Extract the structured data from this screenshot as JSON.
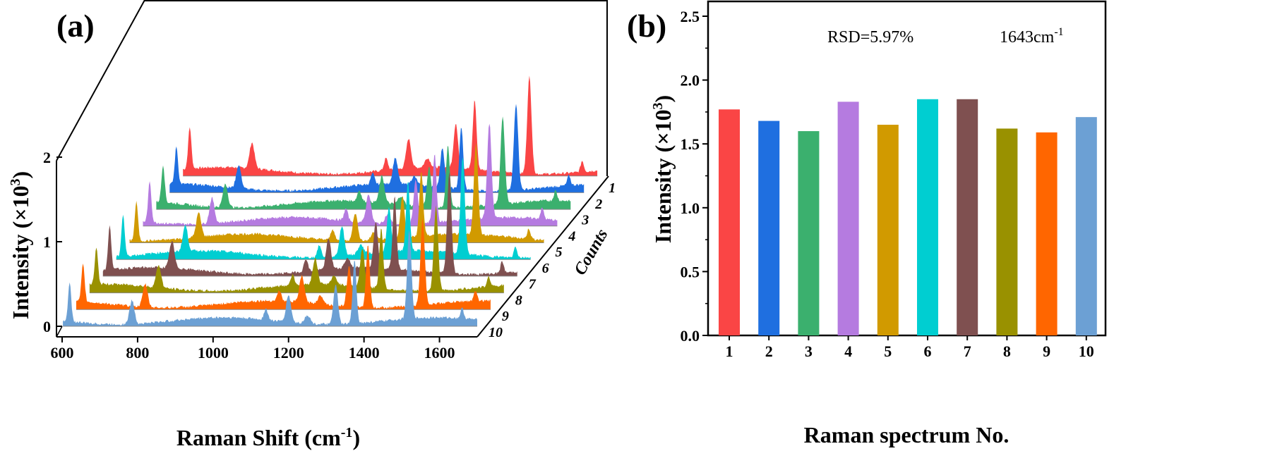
{
  "chart_data": [
    {
      "type": "area",
      "panel_label": "(a)",
      "title": "",
      "xlabel": "Raman Shift (cm",
      "xlabel_sup": "-1",
      "xlabel_close": ")",
      "ylabel": "Intensity (×10",
      "ylabel_sup": "3",
      "ylabel_close": ")",
      "zlabel": "Counts",
      "xlim": [
        600,
        1700
      ],
      "ylim": [
        0,
        2
      ],
      "xticks": [
        "600",
        "800",
        "1000",
        "1200",
        "1400",
        "1600"
      ],
      "xtick_values": [
        600,
        800,
        1000,
        1200,
        1400,
        1600
      ],
      "yticks": [
        "0",
        "1",
        "2"
      ],
      "ytick_values": [
        0,
        1,
        2
      ],
      "zticks": [
        "1",
        "2",
        "3",
        "4",
        "5",
        "6",
        "7",
        "8",
        "9",
        "10"
      ],
      "peaks_cm1": [
        {
          "x": 620,
          "h": 0.45,
          "w": 6
        },
        {
          "x": 785,
          "h": 0.28,
          "w": 9
        },
        {
          "x": 1140,
          "h": 0.13,
          "w": 7
        },
        {
          "x": 1200,
          "h": 0.32,
          "w": 9
        },
        {
          "x": 1250,
          "h": 0.1,
          "w": 10
        },
        {
          "x": 1325,
          "h": 0.48,
          "w": 8
        },
        {
          "x": 1375,
          "h": 0.75,
          "w": 7
        },
        {
          "x": 1520,
          "h": 1.05,
          "w": 8
        },
        {
          "x": 1660,
          "h": 0.12,
          "w": 6
        }
      ],
      "series": [
        {
          "name": "1",
          "color": "#FA4545",
          "scale": 1.04
        },
        {
          "name": "2",
          "color": "#1F6FE0",
          "scale": 0.98
        },
        {
          "name": "3",
          "color": "#3BB06E",
          "scale": 0.94
        },
        {
          "name": "4",
          "color": "#B57BE0",
          "scale": 1.07
        },
        {
          "name": "5",
          "color": "#D19A00",
          "scale": 0.97
        },
        {
          "name": "6",
          "color": "#00CED1",
          "scale": 1.09
        },
        {
          "name": "7",
          "color": "#7F5050",
          "scale": 1.09
        },
        {
          "name": "8",
          "color": "#999100",
          "scale": 0.95
        },
        {
          "name": "9",
          "color": "#FF6600",
          "scale": 0.93
        },
        {
          "name": "10",
          "color": "#6CA0D4",
          "scale": 1.0
        }
      ]
    },
    {
      "type": "bar",
      "panel_label": "(b)",
      "title": "",
      "annotation_rsd": "RSD=5.97%",
      "annotation_band": "1643cm",
      "annotation_band_sup": "-1",
      "xlabel": "Raman spectrum No.",
      "ylabel": "Intensity (×10",
      "ylabel_sup": "3",
      "ylabel_close": ")",
      "ylim": [
        0,
        2.5
      ],
      "yticks": [
        "0.0",
        "0.5",
        "1.0",
        "1.5",
        "2.0",
        "2.5"
      ],
      "ytick_values": [
        0,
        0.5,
        1,
        1.5,
        2,
        2.5
      ],
      "categories": [
        "1",
        "2",
        "3",
        "4",
        "5",
        "6",
        "7",
        "8",
        "9",
        "10"
      ],
      "values": [
        1.77,
        1.68,
        1.6,
        1.83,
        1.65,
        1.85,
        1.85,
        1.62,
        1.59,
        1.71
      ],
      "colors": [
        "#FA4545",
        "#1F6FE0",
        "#3BB06E",
        "#B57BE0",
        "#D19A00",
        "#00CED1",
        "#7F5050",
        "#999100",
        "#FF6600",
        "#6CA0D4"
      ]
    }
  ]
}
